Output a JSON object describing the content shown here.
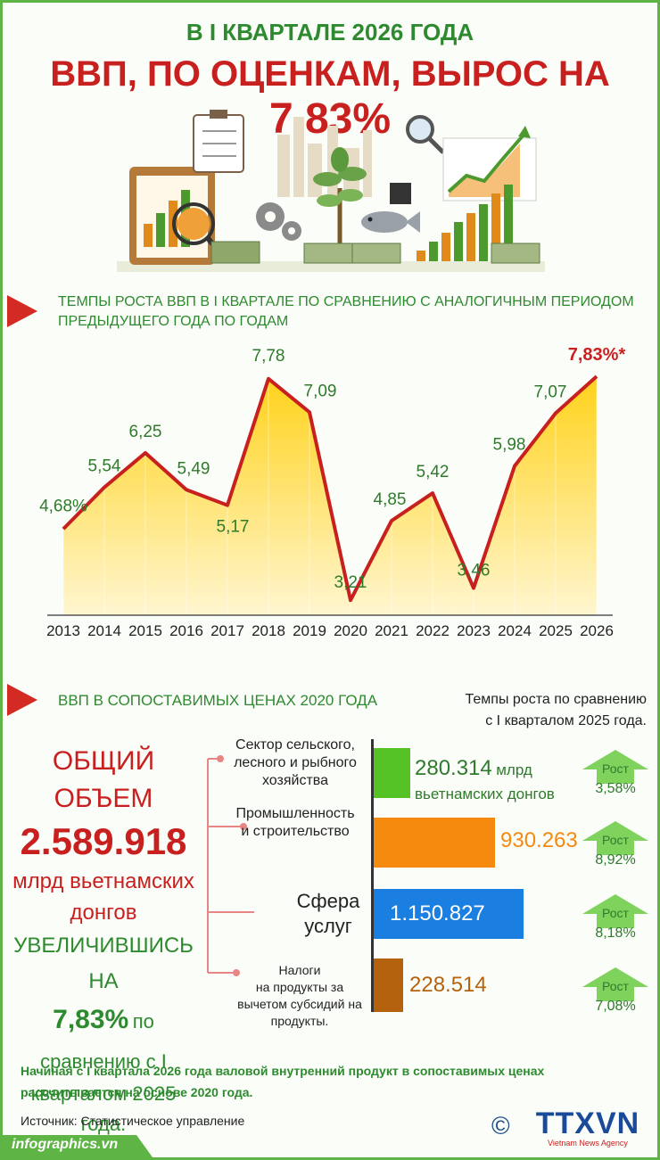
{
  "header": {
    "line1": "В I КВАРТАЛЕ 2026 ГОДА",
    "line2_prefix": "ВВП, ПО ОЦЕНКАМ, ВЫРОС НА",
    "line2_value": "7,83%"
  },
  "chart_section": {
    "title_line1": "ТЕМПЫ РОСТА ВВП В I КВАРТАЛЕ ПО СРАВНЕНИЮ С АНАЛОГИЧНЫМ ПЕРИОДОМ",
    "title_line2": "ПРЕДЫДУЩЕГО ГОДА ПО ГОДАМ"
  },
  "chart_data": {
    "type": "area",
    "x": [
      "2013",
      "2014",
      "2015",
      "2016",
      "2017",
      "2018",
      "2019",
      "2020",
      "2021",
      "2022",
      "2023",
      "2024",
      "2025",
      "2026"
    ],
    "values": [
      4.68,
      5.54,
      6.25,
      5.49,
      5.17,
      7.78,
      7.09,
      3.21,
      4.85,
      5.42,
      3.46,
      5.98,
      7.07,
      7.83
    ],
    "labels": [
      "4,68%",
      "5,54",
      "6,25",
      "5,49",
      "5,17",
      "7,78",
      "7,09",
      "3,21",
      "4,85",
      "5,42",
      "3,46",
      "5,98",
      "7,07",
      "7,83%*"
    ],
    "colors": {
      "line": "#c8201f",
      "fill_top": "#ffd21a",
      "fill_bottom": "#fff6d0",
      "label": "#2f7a2c",
      "highlight": "#c8201f"
    }
  },
  "gdp_section": {
    "title": "ВВП В СОПОСТАВИМЫХ ЦЕНАХ 2020 ГОДА",
    "growth_caption_line1": "Темпы роста по сравнению",
    "growth_caption_line2": "с I кварталом 2025 года.",
    "total_label": "ОБЩИЙ ОБЪЕМ",
    "total_value": "2.589.918",
    "total_unit_line1": "млрд вьетнамских",
    "total_unit_line2": "донгов",
    "increase_label": "УВЕЛИЧИВШИСЬ НА",
    "increase_value": "7,83%",
    "increase_suffix": "по",
    "compare_line1": "сравнению с I",
    "compare_line2": "кварталом 2025 года."
  },
  "sectors": [
    {
      "label_lines": [
        "Сектор сельского,",
        "лесного и рыбного",
        "хозяйства"
      ],
      "value": "280.314",
      "unit_line1": "млрд",
      "unit_line2": "вьетнамских донгов",
      "growth_label": "Рост",
      "growth": "3,58%",
      "color": "#55c226"
    },
    {
      "label_lines": [
        "Промышленность",
        "и строительство"
      ],
      "value": "930.263",
      "growth_label": "Рост",
      "growth": "8,92%",
      "color": "#f58a0f"
    },
    {
      "label_lines": [
        "Сфера",
        "услуг"
      ],
      "value": "1.150.827",
      "growth_label": "Рост",
      "growth": "8,18%",
      "color": "#1a7fe0"
    },
    {
      "label_lines": [
        "Налоги",
        "на продукты за",
        "вычетом субсидий на",
        "продукты."
      ],
      "value": "228.514",
      "growth_label": "Рост",
      "growth": "7,08%",
      "color": "#b5620e"
    }
  ],
  "sector_values_numeric": [
    280314,
    930263,
    1150827,
    228514
  ],
  "footer": {
    "note_line1": "Начиная с I квартала 2026 года валовой внутренний продукт в сопоставимых ценах",
    "note_line2": "рассчитывается на основе 2020 года.",
    "source": "Источник: Статистическое управление",
    "site": "infographics.vn",
    "copyright": "©",
    "agency_logo": "TTXVN",
    "agency_sub": "Vietnam News Agency"
  }
}
